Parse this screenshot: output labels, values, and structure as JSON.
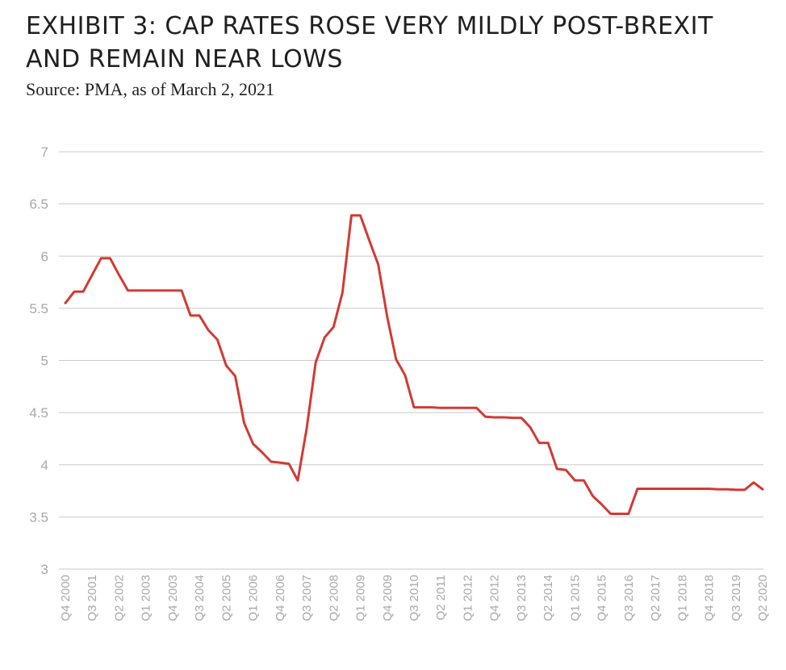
{
  "header": {
    "title": "EXHIBIT 3: CAP RATES ROSE VERY MILDLY POST-BREXIT AND REMAIN NEAR LOWS",
    "source": "Source: PMA, as of March 2, 2021"
  },
  "chart_data": {
    "type": "line",
    "title": "EXHIBIT 3: CAP RATES ROSE VERY MILDLY POST-BREXIT AND REMAIN NEAR LOWS",
    "xlabel": "",
    "ylabel": "",
    "ylim": [
      3,
      7
    ],
    "yticks": [
      3,
      3.5,
      4,
      4.5,
      5,
      5.5,
      6,
      6.5,
      7
    ],
    "grid": true,
    "legend": "none",
    "line_color": "#d23a33",
    "x_tick_labels": [
      "Q4 2000",
      "Q3 2001",
      "Q2 2002",
      "Q1 2003",
      "Q4 2003",
      "Q3 2004",
      "Q2 2005",
      "Q1 2006",
      "Q4 2006",
      "Q3 2007",
      "Q2 2008",
      "Q1 2009",
      "Q4 2009",
      "Q3 2010",
      "Q2 2011",
      "Q1 2012",
      "Q4 2012",
      "Q3 2013",
      "Q2 2014",
      "Q1 2015",
      "Q4 2015",
      "Q3 2016",
      "Q2 2017",
      "Q1 2018",
      "Q4 2018",
      "Q3 2019",
      "Q2 2020"
    ],
    "series": [
      {
        "x": [
          "Q4 2000",
          "Q1 2001",
          "Q2 2001",
          "Q3 2001",
          "Q4 2001",
          "Q1 2002",
          "Q2 2002",
          "Q3 2002",
          "Q4 2002",
          "Q1 2003",
          "Q2 2003",
          "Q3 2003",
          "Q4 2003",
          "Q1 2004",
          "Q2 2004",
          "Q3 2004",
          "Q4 2004",
          "Q1 2005",
          "Q2 2005",
          "Q3 2005",
          "Q4 2005",
          "Q1 2006",
          "Q2 2006",
          "Q3 2006",
          "Q4 2006",
          "Q1 2007",
          "Q2 2007",
          "Q3 2007",
          "Q4 2007",
          "Q1 2008",
          "Q2 2008",
          "Q3 2008",
          "Q4 2008",
          "Q1 2009",
          "Q2 2009",
          "Q3 2009",
          "Q4 2009",
          "Q1 2010",
          "Q2 2010",
          "Q3 2010",
          "Q4 2010",
          "Q1 2011",
          "Q2 2011",
          "Q3 2011",
          "Q4 2011",
          "Q1 2012",
          "Q2 2012",
          "Q3 2012",
          "Q4 2012",
          "Q1 2013",
          "Q2 2013",
          "Q3 2013",
          "Q4 2013",
          "Q1 2014",
          "Q2 2014",
          "Q3 2014",
          "Q4 2014",
          "Q1 2015",
          "Q2 2015",
          "Q3 2015",
          "Q4 2015",
          "Q1 2016",
          "Q2 2016",
          "Q3 2016",
          "Q4 2016",
          "Q1 2017",
          "Q2 2017",
          "Q3 2017",
          "Q4 2017",
          "Q1 2018",
          "Q2 2018",
          "Q3 2018",
          "Q4 2018",
          "Q1 2019",
          "Q2 2019",
          "Q3 2019",
          "Q4 2019",
          "Q1 2020",
          "Q2 2020"
        ],
        "values": [
          5.55,
          5.66,
          5.66,
          5.82,
          5.98,
          5.98,
          5.82,
          5.67,
          5.67,
          5.67,
          5.67,
          5.67,
          5.67,
          5.67,
          5.43,
          5.43,
          5.29,
          5.2,
          4.95,
          4.85,
          4.4,
          4.2,
          4.12,
          4.03,
          4.02,
          4.01,
          3.85,
          4.35,
          4.98,
          5.22,
          5.32,
          5.65,
          6.39,
          6.39,
          6.15,
          5.92,
          5.42,
          5.01,
          4.86,
          4.55,
          4.55,
          4.55,
          4.545,
          4.545,
          4.545,
          4.545,
          4.545,
          4.46,
          4.455,
          4.455,
          4.45,
          4.45,
          4.36,
          4.21,
          4.21,
          3.96,
          3.95,
          3.85,
          3.85,
          3.7,
          3.62,
          3.53,
          3.53,
          3.53,
          3.77,
          3.77,
          3.77,
          3.77,
          3.77,
          3.77,
          3.77,
          3.77,
          3.77,
          3.765,
          3.765,
          3.76,
          3.76,
          3.83,
          3.765
        ]
      }
    ]
  }
}
